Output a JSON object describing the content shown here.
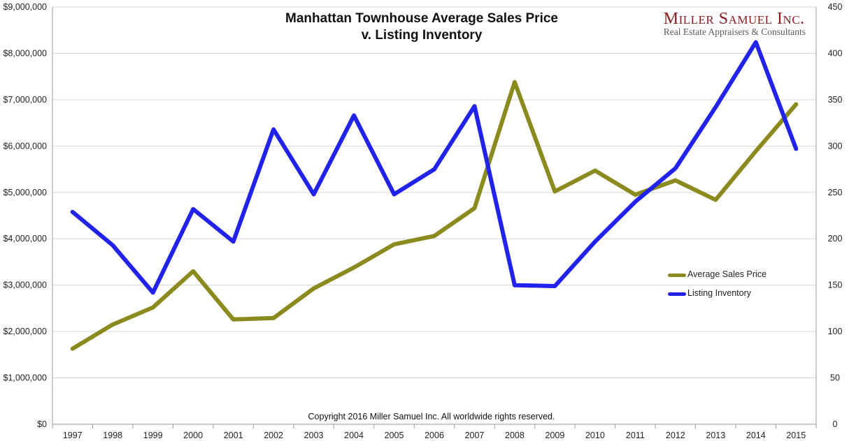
{
  "header": {
    "title_line1": "Manhattan Townhouse Average Sales Price",
    "title_line2": "v. Listing Inventory"
  },
  "logo": {
    "name": "Miller Samuel Inc.",
    "tagline": "Real Estate Appraisers & Consultants"
  },
  "footer": {
    "copyright": "Copyright 2016 Miller Samuel Inc.  All worldwide rights reserved."
  },
  "colors": {
    "price": "#8a8a1e",
    "inventory": "#2222ee",
    "grid": "#d6d6d6",
    "axis": "#999999"
  },
  "chart_data": {
    "type": "line",
    "title": "Manhattan Townhouse Average Sales Price v. Listing Inventory",
    "categories": [
      "1997",
      "1998",
      "1999",
      "2000",
      "2001",
      "2002",
      "2003",
      "2004",
      "2005",
      "2006",
      "2007",
      "2008",
      "2009",
      "2010",
      "2011",
      "2012",
      "2013",
      "2014",
      "2015"
    ],
    "series": [
      {
        "name": "Average Sales Price",
        "axis": "left",
        "values": [
          1630000,
          2150000,
          2520000,
          3300000,
          2260000,
          2290000,
          2930000,
          3380000,
          3880000,
          4060000,
          4660000,
          7380000,
          5020000,
          5470000,
          4950000,
          5260000,
          4840000,
          5890000,
          6900000
        ]
      },
      {
        "name": "Listing Inventory",
        "axis": "right",
        "values": [
          229,
          193,
          142,
          232,
          197,
          318,
          248,
          333,
          248,
          275,
          343,
          150,
          149,
          197,
          240,
          276,
          342,
          412,
          297
        ]
      }
    ],
    "y_left": {
      "min": 0,
      "max": 9000000,
      "step": 1000000,
      "tick_labels": [
        "$0",
        "$1,000,000",
        "$2,000,000",
        "$3,000,000",
        "$4,000,000",
        "$5,000,000",
        "$6,000,000",
        "$7,000,000",
        "$8,000,000",
        "$9,000,000"
      ]
    },
    "y_right": {
      "min": 0,
      "max": 450,
      "step": 50,
      "tick_labels": [
        "0",
        "50",
        "100",
        "150",
        "200",
        "250",
        "300",
        "350",
        "400",
        "450"
      ]
    },
    "grid": "horizontal",
    "legend_position": "right-middle"
  }
}
